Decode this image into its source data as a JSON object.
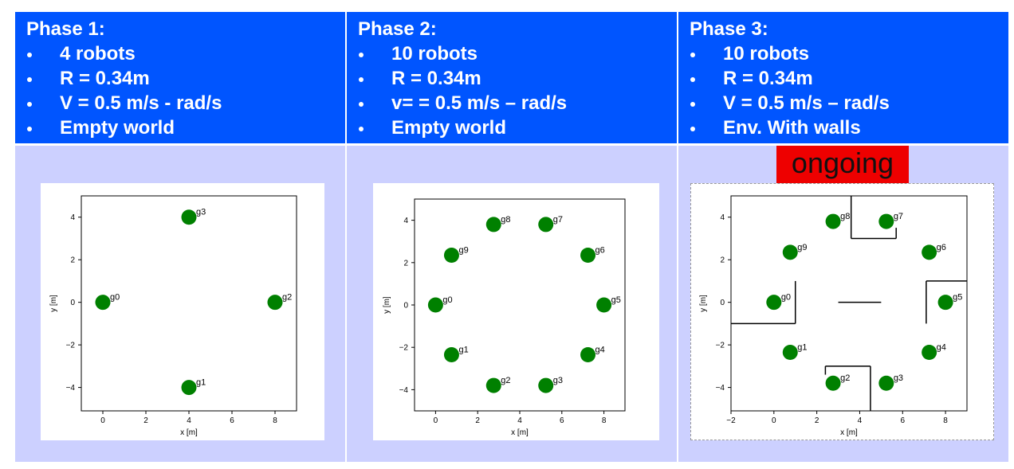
{
  "columns": [
    {
      "title": "Phase 1:",
      "bullets": [
        "4 robots",
        "R = 0.34m",
        "V = 0.5 m/s - rad/s",
        "Empty world"
      ],
      "plot": {
        "xlabel": "x [m]",
        "ylabel": "y [m]",
        "xlim": [
          -1,
          9
        ],
        "ylim": [
          -5.1,
          5
        ],
        "xticks": [
          0,
          2,
          4,
          6,
          8
        ],
        "yticks": [
          {
            "value": -4,
            "label": "−4"
          },
          {
            "value": -2,
            "label": "−2"
          },
          0,
          2,
          4
        ],
        "robots": [
          {
            "label": "g0",
            "x": 0,
            "y": 0
          },
          {
            "label": "g1",
            "x": 4,
            "y": -4
          },
          {
            "label": "g2",
            "x": 8,
            "y": 0
          },
          {
            "label": "g3",
            "x": 4,
            "y": 4
          }
        ],
        "walls": []
      }
    },
    {
      "title": "Phase 2:",
      "bullets": [
        "10 robots",
        "R = 0.34m",
        "v= = 0.5 m/s – rad/s",
        "Empty world"
      ],
      "plot": {
        "xlabel": "x [m]",
        "ylabel": "y [m]",
        "xlim": [
          -1,
          9
        ],
        "ylim": [
          -5,
          5
        ],
        "xticks": [
          0,
          2,
          4,
          6,
          8
        ],
        "yticks": [
          {
            "value": -4,
            "label": "−4"
          },
          {
            "value": -2,
            "label": "−2"
          },
          0,
          2,
          4
        ],
        "robots": [
          {
            "label": "g0",
            "x": 0,
            "y": 0
          },
          {
            "label": "g1",
            "x": 0.76,
            "y": -2.35
          },
          {
            "label": "g2",
            "x": 2.76,
            "y": -3.8
          },
          {
            "label": "g3",
            "x": 5.24,
            "y": -3.8
          },
          {
            "label": "g4",
            "x": 7.24,
            "y": -2.35
          },
          {
            "label": "g5",
            "x": 8,
            "y": 0
          },
          {
            "label": "g6",
            "x": 7.24,
            "y": 2.35
          },
          {
            "label": "g7",
            "x": 5.24,
            "y": 3.8
          },
          {
            "label": "g8",
            "x": 2.76,
            "y": 3.8
          },
          {
            "label": "g9",
            "x": 0.76,
            "y": 2.35
          }
        ],
        "walls": []
      }
    },
    {
      "title": "Phase 3:",
      "bullets": [
        "10 robots",
        "R = 0.34m",
        "V = 0.5 m/s – rad/s",
        "Env. With walls"
      ],
      "plot": {
        "xlabel": "x [m]",
        "ylabel": "y [m]",
        "xlim": [
          -2,
          9
        ],
        "ylim": [
          -5.1,
          5
        ],
        "xticks": [
          {
            "value": -2,
            "label": "−2"
          },
          0,
          2,
          4,
          6,
          8
        ],
        "yticks": [
          {
            "value": -4,
            "label": "−4"
          },
          {
            "value": -2,
            "label": "−2"
          },
          0,
          2,
          4
        ],
        "robots": [
          {
            "label": "g0",
            "x": 0,
            "y": 0
          },
          {
            "label": "g1",
            "x": 0.76,
            "y": -2.35
          },
          {
            "label": "g2",
            "x": 2.76,
            "y": -3.8
          },
          {
            "label": "g3",
            "x": 5.24,
            "y": -3.8
          },
          {
            "label": "g4",
            "x": 7.24,
            "y": -2.35
          },
          {
            "label": "g5",
            "x": 8,
            "y": 0
          },
          {
            "label": "g6",
            "x": 7.24,
            "y": 2.35
          },
          {
            "label": "g7",
            "x": 5.24,
            "y": 3.8
          },
          {
            "label": "g8",
            "x": 2.76,
            "y": 3.8
          },
          {
            "label": "g9",
            "x": 0.76,
            "y": 2.35
          }
        ],
        "walls": [
          [
            3.6,
            5,
            3.6,
            3
          ],
          [
            3.6,
            3,
            5.7,
            3
          ],
          [
            5.7,
            3,
            5.7,
            3.5
          ],
          [
            7.1,
            1,
            7.1,
            -1
          ],
          [
            7.1,
            1,
            9,
            1
          ],
          [
            1,
            1,
            1,
            -1
          ],
          [
            -2,
            -1,
            1,
            -1
          ],
          [
            3,
            0,
            5,
            0
          ],
          [
            2.4,
            -3,
            4.5,
            -3
          ],
          [
            2.4,
            -3,
            2.4,
            -3.4
          ],
          [
            4.5,
            -3,
            4.5,
            -5.1
          ]
        ]
      }
    }
  ],
  "status": "ongoing"
}
